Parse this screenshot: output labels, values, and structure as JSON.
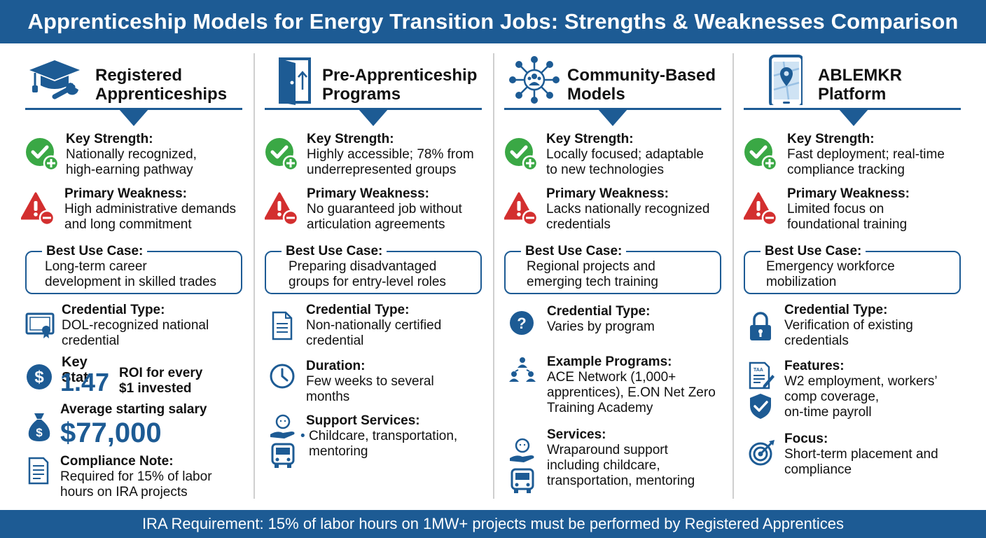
{
  "title": "Apprenticeship Models for Energy Transition Jobs: Strengths & Weaknesses Comparison",
  "footer": "IRA Requirement: 15% of labor hours on 1MW+ projects must be performed by Registered Apprentices",
  "colors": {
    "brand": "#1d5b94",
    "strength": "#3aa845",
    "weakness": "#d32f2f"
  },
  "columns": [
    {
      "title_line1": "Registered",
      "title_line2": "Apprenticeships",
      "icon": "graduation-cap-wrench-icon",
      "strength_label": "Key Strength:",
      "strength_line1": "Nationally recognized,",
      "strength_line2": "high-earning pathway",
      "weakness_label": "Primary Weakness:",
      "weakness_line1": "High administrative demands",
      "weakness_line2": "and long commitment",
      "usecase_label": "Best Use Case:",
      "usecase_line1": "Long-term career",
      "usecase_line2": "development in skilled trades",
      "credential_label": "Credential Type:",
      "credential_line1": "DOL-recognized national",
      "credential_line2": "credential",
      "keystat_label": "Key Stat",
      "keystat_value": "1.47",
      "keystat_line1": "ROI for every",
      "keystat_line2": "$1 invested",
      "salary_label": "Average starting salary",
      "salary_value": "$77,000",
      "compliance_label": "Compliance Note:",
      "compliance_line1": "Required for 15% of labor",
      "compliance_line2": "hours on IRA projects"
    },
    {
      "title_line1": "Pre-Apprenticeship",
      "title_line2": "Programs",
      "icon": "open-door-icon",
      "strength_label": "Key Strength:",
      "strength_line1": "Highly accessible; 78% from",
      "strength_line2": "underrepresented groups",
      "weakness_label": "Primary Weakness:",
      "weakness_line1": "No guaranteed job without",
      "weakness_line2": "articulation agreements",
      "usecase_label": "Best Use Case:",
      "usecase_line1": "Preparing disadvantaged",
      "usecase_line2": "groups for entry-level roles",
      "credential_label": "Credential Type:",
      "credential_line1": "Non-nationally certified",
      "credential_line2": "credential",
      "duration_label": "Duration:",
      "duration_line1": "Few weeks to several",
      "duration_line2": "months",
      "support_label": "Support Services:",
      "support_line1": "Childcare, transportation,",
      "support_line2": "mentoring"
    },
    {
      "title_line1": "Community-Based",
      "title_line2": "Models",
      "icon": "community-network-icon",
      "strength_label": "Key Strength:",
      "strength_line1": "Locally focused; adaptable",
      "strength_line2": "to new technologies",
      "weakness_label": "Primary Weakness:",
      "weakness_line1": "Lacks nationally recognized",
      "weakness_line2": "credentials",
      "usecase_label": "Best Use Case:",
      "usecase_line1": "Regional projects and",
      "usecase_line2": "emerging tech training",
      "credential_label": "Credential Type:",
      "credential_line1": "Varies by program",
      "programs_label": "Example Programs:",
      "programs_line1": "ACE Network (1,000+",
      "programs_line2": "apprentices), E.ON Net Zero",
      "programs_line3": "Training Academy",
      "services_label": "Services:",
      "services_line1": "Wraparound support",
      "services_line2": "including childcare,",
      "services_line3": "transportation, mentoring"
    },
    {
      "title_line1": "ABLEMKR",
      "title_line2": "Platform",
      "icon": "smartphone-map-pin-icon",
      "strength_label": "Key Strength:",
      "strength_line1": "Fast deployment; real-time",
      "strength_line2": "compliance tracking",
      "weakness_label": "Primary Weakness:",
      "weakness_line1": "Limited focus on",
      "weakness_line2": "foundational training",
      "usecase_label": "Best Use Case:",
      "usecase_line1": "Emergency workforce",
      "usecase_line2": "mobilization",
      "credential_label": "Credential Type:",
      "credential_line1": "Verification of existing",
      "credential_line2": "credentials",
      "features_label": "Features:",
      "features_line1": "W2 employment, workers’",
      "features_line2": "comp coverage,",
      "features_line3": "on-time payroll",
      "focus_label": "Focus:",
      "focus_line1": "Short-term placement and",
      "focus_line2": "compliance"
    }
  ]
}
